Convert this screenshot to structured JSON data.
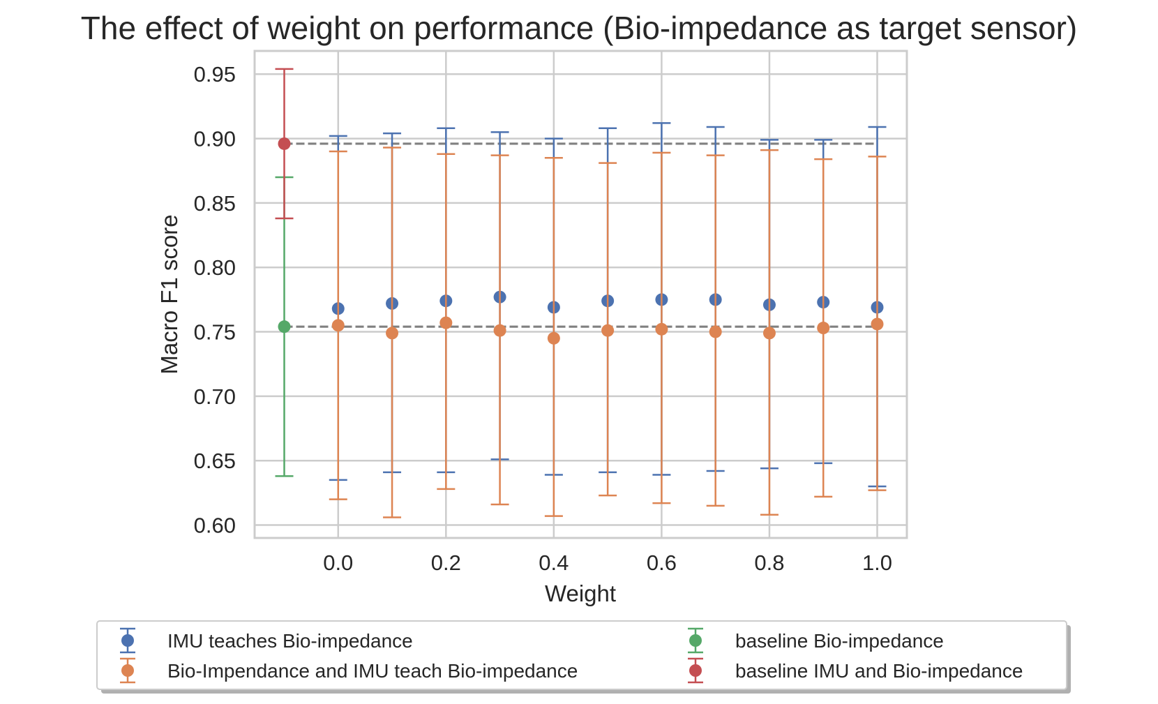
{
  "chart_data": {
    "type": "errorbar",
    "title": "The effect of weight on performance (Bio-impedance as target sensor)",
    "xlabel": "Weight",
    "ylabel": "Macro F1 score",
    "xlim": [
      -0.155,
      1.055
    ],
    "ylim": [
      0.59,
      0.968
    ],
    "xticks": [
      0.0,
      0.2,
      0.4,
      0.6,
      0.8,
      1.0
    ],
    "xtick_labels": [
      "0.0",
      "0.2",
      "0.4",
      "0.6",
      "0.8",
      "1.0"
    ],
    "yticks": [
      0.6,
      0.65,
      0.7,
      0.75,
      0.8,
      0.85,
      0.9,
      0.95
    ],
    "ytick_labels": [
      "0.60",
      "0.65",
      "0.70",
      "0.75",
      "0.80",
      "0.85",
      "0.90",
      "0.95"
    ],
    "grid": true,
    "legend_position": "below",
    "reference_lines": [
      {
        "y": 0.896,
        "style": "dashed",
        "color": "#808080"
      },
      {
        "y": 0.754,
        "style": "dashed",
        "color": "#808080"
      }
    ],
    "series": [
      {
        "name": "IMU teaches Bio-impedance",
        "color": "#4C72B0",
        "x": [
          0.0,
          0.1,
          0.2,
          0.3,
          0.4,
          0.5,
          0.6,
          0.7,
          0.8,
          0.9,
          1.0
        ],
        "y": [
          0.768,
          0.772,
          0.774,
          0.777,
          0.769,
          0.774,
          0.775,
          0.775,
          0.771,
          0.773,
          0.769
        ],
        "lower": [
          0.635,
          0.641,
          0.641,
          0.651,
          0.639,
          0.641,
          0.639,
          0.642,
          0.644,
          0.648,
          0.63
        ],
        "upper": [
          0.902,
          0.904,
          0.908,
          0.905,
          0.9,
          0.908,
          0.912,
          0.909,
          0.899,
          0.899,
          0.909
        ]
      },
      {
        "name": "Bio-Impendance and IMU teach Bio-impedance",
        "color": "#DD8452",
        "x": [
          0.0,
          0.1,
          0.2,
          0.3,
          0.4,
          0.5,
          0.6,
          0.7,
          0.8,
          0.9,
          1.0
        ],
        "y": [
          0.755,
          0.749,
          0.757,
          0.751,
          0.745,
          0.751,
          0.752,
          0.75,
          0.749,
          0.753,
          0.756
        ],
        "lower": [
          0.62,
          0.606,
          0.628,
          0.616,
          0.607,
          0.623,
          0.617,
          0.615,
          0.608,
          0.622,
          0.627
        ],
        "upper": [
          0.89,
          0.893,
          0.888,
          0.887,
          0.885,
          0.881,
          0.889,
          0.887,
          0.891,
          0.884,
          0.886
        ]
      },
      {
        "name": "baseline Bio-impedance",
        "color": "#55A868",
        "x": [
          -0.1
        ],
        "y": [
          0.754
        ],
        "lower": [
          0.638
        ],
        "upper": [
          0.87
        ]
      },
      {
        "name": "baseline IMU and Bio-impedance",
        "color": "#C44E52",
        "x": [
          -0.1
        ],
        "y": [
          0.896
        ],
        "lower": [
          0.838
        ],
        "upper": [
          0.954
        ]
      }
    ]
  }
}
